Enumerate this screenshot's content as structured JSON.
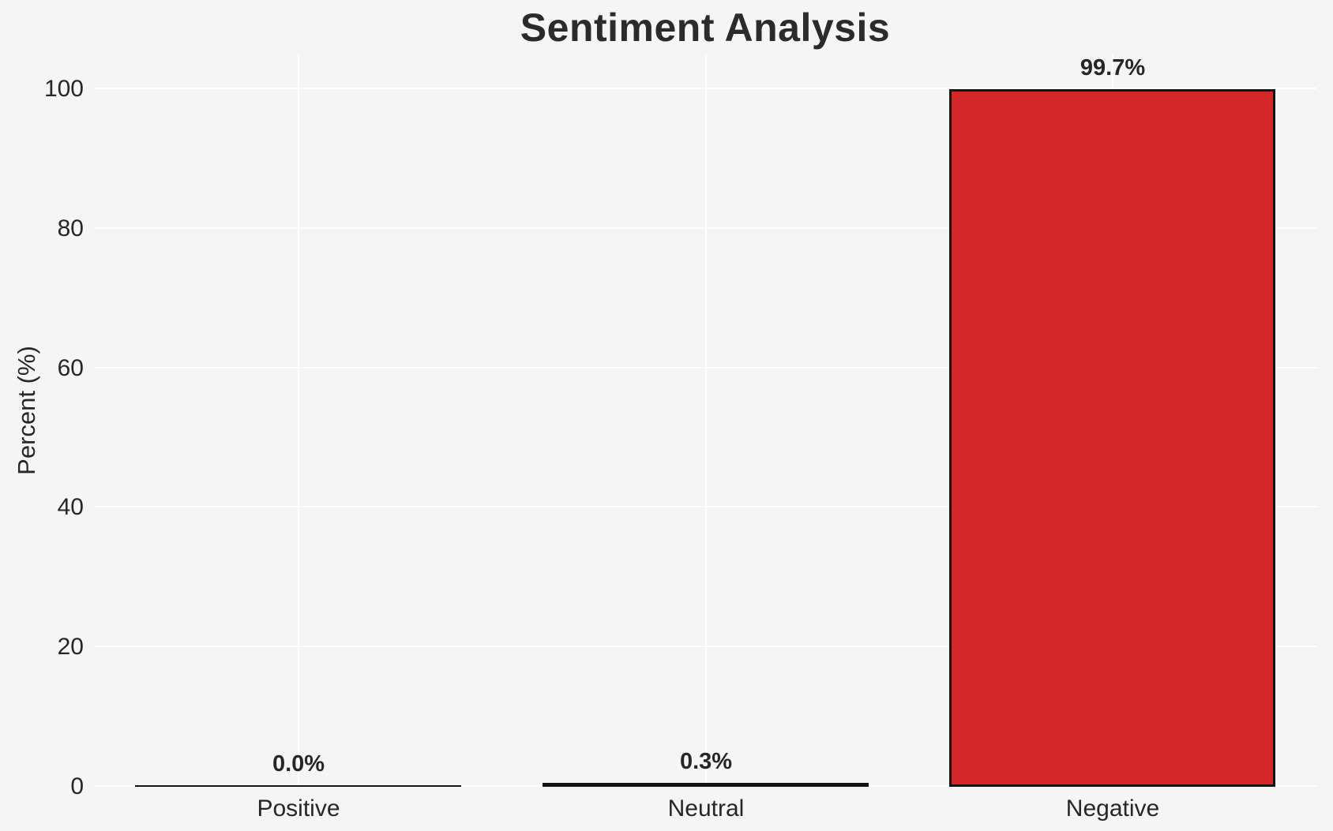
{
  "chart_data": {
    "type": "bar",
    "title": "Sentiment Analysis",
    "xlabel": "",
    "ylabel": "Percent (%)",
    "categories": [
      "Positive",
      "Neutral",
      "Negative"
    ],
    "values": [
      0.0,
      0.3,
      99.7
    ],
    "bar_labels": [
      "0.0%",
      "0.3%",
      "99.7%"
    ],
    "yticks": [
      0,
      20,
      40,
      60,
      80,
      100
    ],
    "ylim": [
      0,
      105
    ],
    "grid": true,
    "legend": "none",
    "colors": {
      "background": "#f5f5f6",
      "grid": "#ffffff",
      "bar_fill": "#d62728",
      "bar_edge": "#141414",
      "title_text": "#2b2b2b",
      "tick_text": "#262626"
    }
  }
}
